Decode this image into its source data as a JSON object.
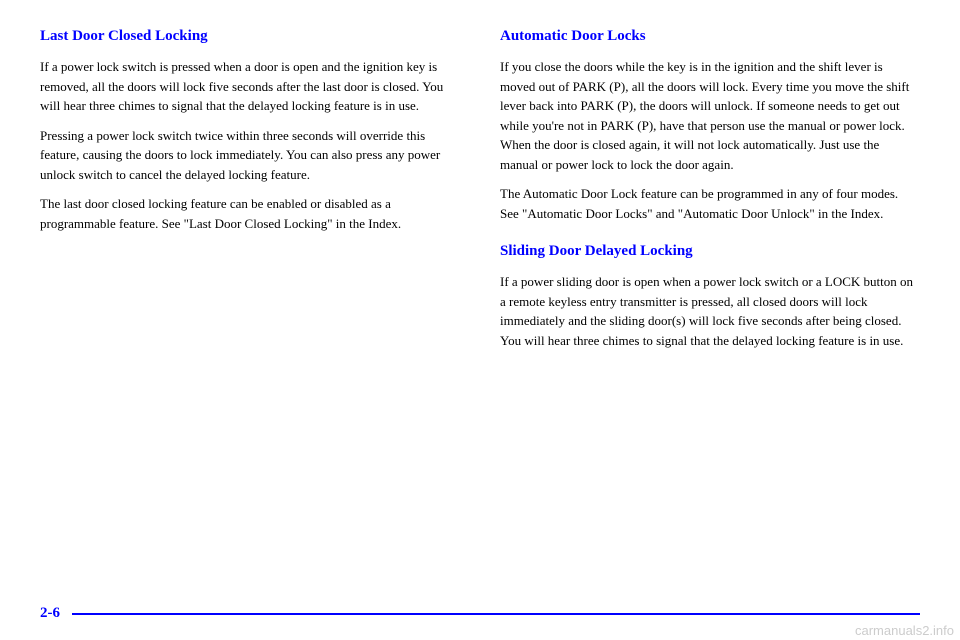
{
  "colors": {
    "heading": "#0000ff",
    "body": "#000000",
    "footer_line": "#0000ff",
    "background": "#ffffff",
    "watermark": "#cccccc"
  },
  "typography": {
    "heading_fontsize": 15,
    "body_fontsize": 13,
    "page_number_fontsize": 15
  },
  "left_column": {
    "heading": "Last Door Closed Locking",
    "paragraphs": [
      "If a power lock switch is pressed when a door is open and the ignition key is removed, all the doors will lock five seconds after the last door is closed. You will hear three chimes to signal that the delayed locking feature is in use.",
      "Pressing a power lock switch twice within three seconds will override this feature, causing the doors to lock immediately. You can also press any power unlock switch to cancel the delayed locking feature.",
      "The last door closed locking feature can be enabled or disabled as a programmable feature. See \"Last Door Closed Locking\" in the Index."
    ]
  },
  "right_column": {
    "heading1": "Automatic Door Locks",
    "paragraphs1": [
      "If you close the doors while the key is in the ignition and the shift lever is moved out of PARK (P), all the doors will lock. Every time you move the shift lever back into PARK (P), the doors will unlock. If someone needs to get out while you're not in PARK (P), have that person use the manual or power lock. When the door is closed again, it will not lock automatically. Just use the manual or power lock to lock the door again.",
      "The Automatic Door Lock feature can be programmed in any of four modes. See \"Automatic Door Locks\" and \"Automatic Door Unlock\" in the Index."
    ],
    "heading2": "Sliding Door Delayed Locking",
    "paragraphs2": [
      "If a power sliding door is open when a power lock switch or a LOCK button on a remote keyless entry transmitter is pressed, all closed doors will lock immediately and the sliding door(s) will lock five seconds after being closed. You will hear three chimes to signal that the delayed locking feature is in use."
    ]
  },
  "footer": {
    "page_number": "2-6"
  },
  "watermark": "carmanuals2.info"
}
